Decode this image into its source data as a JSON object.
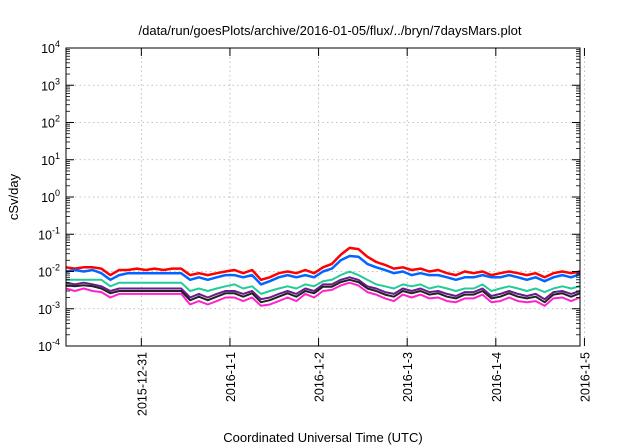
{
  "chart_data": {
    "type": "line",
    "title": "/data/run/goesPlots/archive/2016-01-05/flux/../bryn/7daysMars.plot",
    "xlabel": "Coordinated Universal Time (UTC)",
    "ylabel": "cSv/day",
    "yscale": "log",
    "ylim": [
      0.0001,
      10000
    ],
    "xlim": [
      -0.85,
      4.95
    ],
    "grid": true,
    "y_ticks": [
      {
        "value": 0.0001,
        "base": "10",
        "exp": "-4"
      },
      {
        "value": 0.001,
        "base": "10",
        "exp": "-3"
      },
      {
        "value": 0.01,
        "base": "10",
        "exp": "-2"
      },
      {
        "value": 0.1,
        "base": "10",
        "exp": "-1"
      },
      {
        "value": 1,
        "base": "10",
        "exp": "0"
      },
      {
        "value": 10,
        "base": "10",
        "exp": "1"
      },
      {
        "value": 100,
        "base": "10",
        "exp": "2"
      },
      {
        "value": 1000,
        "base": "10",
        "exp": "3"
      },
      {
        "value": 10000,
        "base": "10",
        "exp": "4"
      }
    ],
    "x_ticks": [
      {
        "value": 0,
        "label": "2015-12-31"
      },
      {
        "value": 1,
        "label": "2016-1-1"
      },
      {
        "value": 2,
        "label": "2016-1-2"
      },
      {
        "value": 3,
        "label": "2016-1-3"
      },
      {
        "value": 4,
        "label": "2016-1-4"
      },
      {
        "value": 5,
        "label": "2016-1-5"
      }
    ],
    "x": [
      -0.85,
      -0.75,
      -0.65,
      -0.55,
      -0.45,
      -0.35,
      -0.25,
      -0.15,
      -0.05,
      0.05,
      0.15,
      0.25,
      0.35,
      0.45,
      0.55,
      0.65,
      0.75,
      0.85,
      0.95,
      1.05,
      1.15,
      1.25,
      1.35,
      1.45,
      1.55,
      1.65,
      1.75,
      1.85,
      1.95,
      2.05,
      2.15,
      2.25,
      2.35,
      2.45,
      2.55,
      2.65,
      2.75,
      2.85,
      2.95,
      3.05,
      3.15,
      3.25,
      3.35,
      3.45,
      3.55,
      3.65,
      3.75,
      3.85,
      3.95,
      4.05,
      4.15,
      4.25,
      4.35,
      4.45,
      4.55,
      4.65,
      4.75,
      4.85,
      4.95
    ],
    "series": [
      {
        "color": "#ff0000",
        "width": 2.5,
        "values": [
          0.013,
          0.012,
          0.013,
          0.013,
          0.012,
          0.008,
          0.011,
          0.011,
          0.012,
          0.011,
          0.012,
          0.011,
          0.012,
          0.012,
          0.008,
          0.009,
          0.008,
          0.009,
          0.01,
          0.011,
          0.009,
          0.011,
          0.006,
          0.007,
          0.009,
          0.01,
          0.009,
          0.011,
          0.009,
          0.013,
          0.016,
          0.028,
          0.043,
          0.04,
          0.025,
          0.018,
          0.015,
          0.012,
          0.013,
          0.011,
          0.012,
          0.01,
          0.011,
          0.009,
          0.008,
          0.01,
          0.009,
          0.01,
          0.008,
          0.009,
          0.01,
          0.009,
          0.008,
          0.009,
          0.007,
          0.009,
          0.01,
          0.009,
          0.01
        ]
      },
      {
        "color": "#0066ff",
        "width": 2.5,
        "values": [
          0.01,
          0.011,
          0.01,
          0.011,
          0.009,
          0.006,
          0.008,
          0.009,
          0.009,
          0.009,
          0.009,
          0.009,
          0.009,
          0.009,
          0.006,
          0.007,
          0.006,
          0.007,
          0.008,
          0.008,
          0.007,
          0.008,
          0.0045,
          0.0055,
          0.007,
          0.008,
          0.007,
          0.008,
          0.007,
          0.01,
          0.012,
          0.02,
          0.026,
          0.025,
          0.016,
          0.013,
          0.011,
          0.009,
          0.01,
          0.008,
          0.009,
          0.008,
          0.008,
          0.007,
          0.006,
          0.007,
          0.007,
          0.008,
          0.007,
          0.007,
          0.008,
          0.007,
          0.006,
          0.007,
          0.0055,
          0.007,
          0.008,
          0.007,
          0.0085
        ]
      },
      {
        "color": "#22cc99",
        "width": 2,
        "values": [
          0.006,
          0.006,
          0.006,
          0.006,
          0.006,
          0.004,
          0.005,
          0.005,
          0.005,
          0.005,
          0.005,
          0.005,
          0.005,
          0.005,
          0.003,
          0.0035,
          0.003,
          0.0035,
          0.004,
          0.0045,
          0.0035,
          0.004,
          0.0025,
          0.003,
          0.0035,
          0.004,
          0.0035,
          0.0045,
          0.004,
          0.0055,
          0.006,
          0.008,
          0.01,
          0.008,
          0.006,
          0.0045,
          0.004,
          0.0035,
          0.0045,
          0.004,
          0.0045,
          0.0035,
          0.004,
          0.0035,
          0.003,
          0.0035,
          0.0035,
          0.0045,
          0.003,
          0.0035,
          0.004,
          0.0035,
          0.003,
          0.0035,
          0.0028,
          0.0035,
          0.004,
          0.0035,
          0.004
        ]
      },
      {
        "color": "#6a1a8a",
        "width": 2,
        "values": [
          0.005,
          0.0045,
          0.005,
          0.0045,
          0.004,
          0.003,
          0.0035,
          0.0035,
          0.0035,
          0.0035,
          0.0035,
          0.0035,
          0.0035,
          0.0035,
          0.002,
          0.0025,
          0.002,
          0.0025,
          0.003,
          0.003,
          0.0025,
          0.003,
          0.0018,
          0.002,
          0.0025,
          0.003,
          0.0025,
          0.0035,
          0.003,
          0.0045,
          0.0045,
          0.006,
          0.007,
          0.006,
          0.004,
          0.0035,
          0.0028,
          0.0025,
          0.0035,
          0.003,
          0.0035,
          0.0028,
          0.003,
          0.0025,
          0.0022,
          0.0028,
          0.0028,
          0.0035,
          0.0022,
          0.0025,
          0.003,
          0.0025,
          0.0022,
          0.0025,
          0.0018,
          0.0028,
          0.003,
          0.0025,
          0.003
        ]
      },
      {
        "color": "#222222",
        "width": 2,
        "values": [
          0.0043,
          0.004,
          0.0043,
          0.004,
          0.0035,
          0.0026,
          0.003,
          0.003,
          0.003,
          0.003,
          0.003,
          0.003,
          0.003,
          0.003,
          0.0017,
          0.0021,
          0.0017,
          0.0021,
          0.0026,
          0.0026,
          0.0021,
          0.0026,
          0.0015,
          0.0017,
          0.0021,
          0.0026,
          0.0021,
          0.003,
          0.0026,
          0.0039,
          0.0039,
          0.0052,
          0.006,
          0.0052,
          0.0035,
          0.003,
          0.0024,
          0.0021,
          0.003,
          0.0026,
          0.003,
          0.0024,
          0.0026,
          0.0021,
          0.0019,
          0.0024,
          0.0024,
          0.003,
          0.0019,
          0.0021,
          0.0026,
          0.0021,
          0.0019,
          0.0021,
          0.0015,
          0.0024,
          0.0026,
          0.0021,
          0.0026
        ]
      },
      {
        "color": "#ff22cc",
        "width": 2,
        "values": [
          0.0035,
          0.003,
          0.0035,
          0.003,
          0.0028,
          0.002,
          0.0025,
          0.0025,
          0.0025,
          0.0025,
          0.0025,
          0.0025,
          0.0025,
          0.0025,
          0.0013,
          0.0016,
          0.0013,
          0.0016,
          0.002,
          0.002,
          0.0016,
          0.002,
          0.0012,
          0.0013,
          0.0016,
          0.002,
          0.0016,
          0.0025,
          0.002,
          0.003,
          0.0032,
          0.0042,
          0.005,
          0.0042,
          0.0028,
          0.0024,
          0.0019,
          0.0016,
          0.0024,
          0.002,
          0.0024,
          0.0019,
          0.002,
          0.0016,
          0.0015,
          0.0019,
          0.0019,
          0.0024,
          0.0015,
          0.0016,
          0.002,
          0.0016,
          0.0015,
          0.0016,
          0.0012,
          0.0019,
          0.002,
          0.0016,
          0.002
        ]
      }
    ]
  }
}
